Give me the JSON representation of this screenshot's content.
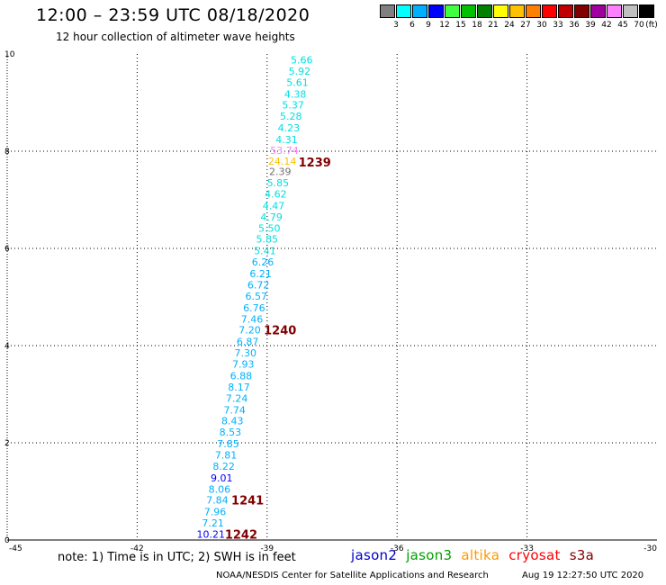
{
  "header": {
    "title": "12:00 – 23:59 UTC 08/18/2020",
    "subtitle": "12 hour collection of altimeter wave heights"
  },
  "color_scale": {
    "unit": "(ft)",
    "labels": [
      "3",
      "6",
      "9",
      "12",
      "15",
      "18",
      "21",
      "24",
      "27",
      "30",
      "33",
      "36",
      "39",
      "42",
      "45",
      "70"
    ],
    "colors": [
      "#808080",
      "#00ffff",
      "#00b0ff",
      "#0000ff",
      "#40ff40",
      "#00c000",
      "#008000",
      "#ffff00",
      "#ffc000",
      "#ff8000",
      "#ff0000",
      "#c00000",
      "#800000",
      "#a000a0",
      "#ff80ff",
      "#c0c0c0",
      "#000000"
    ]
  },
  "footer": {
    "note": "note: 1) Time is in UTC; 2) SWH is in feet",
    "satellites": [
      {
        "name": "jason2",
        "color": "#0000cc"
      },
      {
        "name": "jason3",
        "color": "#00a000"
      },
      {
        "name": "altika",
        "color": "#ff9900"
      },
      {
        "name": "cryosat",
        "color": "#ff0000"
      },
      {
        "name": "s3a",
        "color": "#800000"
      }
    ],
    "credit": "NOAA/NESDIS Center for Satellite Applications and Research",
    "timestamp": "Aug 19 12:27:50 UTC 2020"
  },
  "chart_data": {
    "type": "scatter",
    "xlim": [
      -45,
      -30
    ],
    "ylim": [
      0,
      10
    ],
    "x_ticks": [
      "-45",
      "-42",
      "-39",
      "-36",
      "-33",
      "-30"
    ],
    "y_ticks": [
      "0",
      "2",
      "4",
      "6",
      "8",
      "10"
    ],
    "grid": true,
    "points": [
      {
        "lon": -38.2,
        "lat": 9.88,
        "label": "5.66",
        "color": "#00e0e0"
      },
      {
        "lon": -38.25,
        "lat": 9.65,
        "label": "5.92",
        "color": "#00e0e0"
      },
      {
        "lon": -38.3,
        "lat": 9.42,
        "label": "5.61",
        "color": "#00e0e0"
      },
      {
        "lon": -38.35,
        "lat": 9.18,
        "label": "4.38",
        "color": "#00e0e0"
      },
      {
        "lon": -38.4,
        "lat": 8.95,
        "label": "5.37",
        "color": "#00e0e0"
      },
      {
        "lon": -38.45,
        "lat": 8.72,
        "label": "5.28",
        "color": "#00e0e0"
      },
      {
        "lon": -38.5,
        "lat": 8.48,
        "label": "4.23",
        "color": "#00e0e0"
      },
      {
        "lon": -38.55,
        "lat": 8.24,
        "label": "4.31",
        "color": "#00e0e0"
      },
      {
        "lon": -38.6,
        "lat": 8.02,
        "label": "53.74",
        "color": "#ff80ff"
      },
      {
        "lon": -38.65,
        "lat": 7.8,
        "label": "24.14",
        "color": "#ffc000"
      },
      {
        "lon": -38.7,
        "lat": 7.58,
        "label": "2.39",
        "color": "#707070"
      },
      {
        "lon": -38.75,
        "lat": 7.35,
        "label": "5.85",
        "color": "#00e0e0"
      },
      {
        "lon": -38.8,
        "lat": 7.12,
        "label": "4.62",
        "color": "#00e0e0"
      },
      {
        "lon": -38.85,
        "lat": 6.88,
        "label": "4.47",
        "color": "#00e0e0"
      },
      {
        "lon": -38.9,
        "lat": 6.65,
        "label": "4.79",
        "color": "#00e0e0"
      },
      {
        "lon": -38.95,
        "lat": 6.42,
        "label": "5.50",
        "color": "#00e0e0"
      },
      {
        "lon": -39.0,
        "lat": 6.19,
        "label": "5.85",
        "color": "#00e0e0"
      },
      {
        "lon": -39.05,
        "lat": 5.95,
        "label": "5.41",
        "color": "#00e0e0"
      },
      {
        "lon": -39.1,
        "lat": 5.72,
        "label": "6.26",
        "color": "#00b0ff"
      },
      {
        "lon": -39.15,
        "lat": 5.48,
        "label": "6.21",
        "color": "#00b0ff"
      },
      {
        "lon": -39.2,
        "lat": 5.25,
        "label": "6.72",
        "color": "#00b0ff"
      },
      {
        "lon": -39.25,
        "lat": 5.02,
        "label": "6.57",
        "color": "#00b0ff"
      },
      {
        "lon": -39.3,
        "lat": 4.78,
        "label": "6.76",
        "color": "#00b0ff"
      },
      {
        "lon": -39.35,
        "lat": 4.55,
        "label": "7.46",
        "color": "#00b0ff"
      },
      {
        "lon": -39.4,
        "lat": 4.32,
        "label": "7.20",
        "color": "#00b0ff"
      },
      {
        "lon": -39.45,
        "lat": 4.08,
        "label": "6.87",
        "color": "#00b0ff"
      },
      {
        "lon": -39.5,
        "lat": 3.85,
        "label": "7.30",
        "color": "#00b0ff"
      },
      {
        "lon": -39.55,
        "lat": 3.62,
        "label": "7.93",
        "color": "#00b0ff"
      },
      {
        "lon": -39.6,
        "lat": 3.38,
        "label": "6.88",
        "color": "#00b0ff"
      },
      {
        "lon": -39.65,
        "lat": 3.15,
        "label": "8.17",
        "color": "#00b0ff"
      },
      {
        "lon": -39.7,
        "lat": 2.92,
        "label": "7.24",
        "color": "#00b0ff"
      },
      {
        "lon": -39.75,
        "lat": 2.68,
        "label": "7.74",
        "color": "#00b0ff"
      },
      {
        "lon": -39.8,
        "lat": 2.45,
        "label": "8.43",
        "color": "#00b0ff"
      },
      {
        "lon": -39.85,
        "lat": 2.22,
        "label": "8.53",
        "color": "#00b0ff"
      },
      {
        "lon": -39.9,
        "lat": 1.98,
        "label": "7.85",
        "color": "#00b0ff"
      },
      {
        "lon": -39.95,
        "lat": 1.75,
        "label": "7.81",
        "color": "#00b0ff"
      },
      {
        "lon": -40.0,
        "lat": 1.52,
        "label": "8.22",
        "color": "#00b0ff"
      },
      {
        "lon": -40.05,
        "lat": 1.28,
        "label": "9.01",
        "color": "#0000ff"
      },
      {
        "lon": -40.1,
        "lat": 1.05,
        "label": "8.06",
        "color": "#00b0ff"
      },
      {
        "lon": -40.15,
        "lat": 0.82,
        "label": "7.84",
        "color": "#00b0ff"
      },
      {
        "lon": -40.2,
        "lat": 0.58,
        "label": "7.96",
        "color": "#00b0ff"
      },
      {
        "lon": -40.25,
        "lat": 0.35,
        "label": "7.21",
        "color": "#00b0ff"
      },
      {
        "lon": -40.3,
        "lat": 0.12,
        "label": "10.21",
        "color": "#0000ff"
      }
    ],
    "pass_labels": [
      {
        "lon": -37.9,
        "lat": 7.78,
        "label": "1239",
        "color": "#800000"
      },
      {
        "lon": -38.7,
        "lat": 4.32,
        "label": "1240",
        "color": "#800000"
      },
      {
        "lon": -39.45,
        "lat": 0.82,
        "label": "1241",
        "color": "#800000"
      },
      {
        "lon": -39.6,
        "lat": 0.12,
        "label": "1242",
        "color": "#800000"
      }
    ]
  }
}
